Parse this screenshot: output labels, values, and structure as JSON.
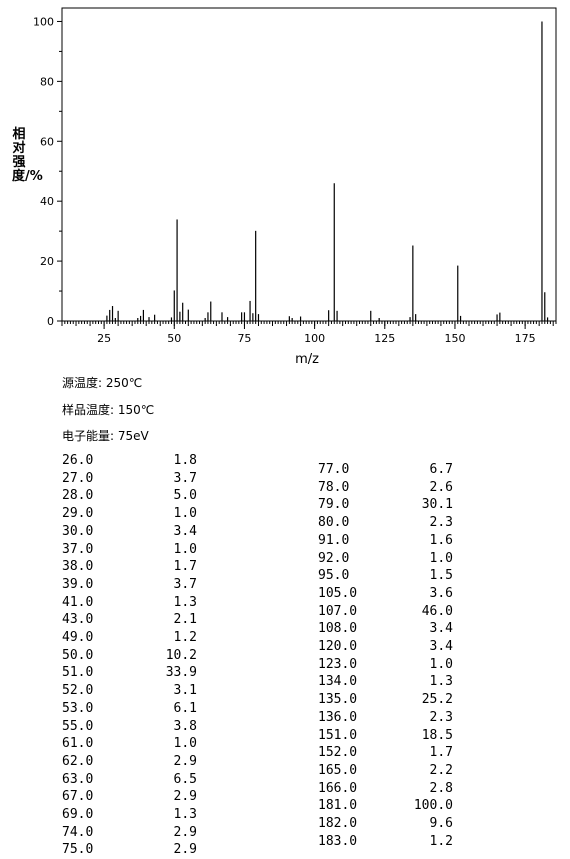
{
  "chart_data": {
    "type": "bar",
    "xlabel": "m/z",
    "ylabel": "相对强度/%",
    "xlim": [
      10,
      186
    ],
    "ylim": [
      0,
      100
    ],
    "x_ticks": [
      25,
      50,
      75,
      100,
      125,
      150,
      175
    ],
    "y_ticks": [
      0,
      20,
      40,
      60,
      80,
      100
    ],
    "grid": false,
    "peaks": [
      {
        "mz": 26.0,
        "intensity": 1.8
      },
      {
        "mz": 27.0,
        "intensity": 3.7
      },
      {
        "mz": 28.0,
        "intensity": 5.0
      },
      {
        "mz": 29.0,
        "intensity": 1.0
      },
      {
        "mz": 30.0,
        "intensity": 3.4
      },
      {
        "mz": 37.0,
        "intensity": 1.0
      },
      {
        "mz": 38.0,
        "intensity": 1.7
      },
      {
        "mz": 39.0,
        "intensity": 3.7
      },
      {
        "mz": 41.0,
        "intensity": 1.3
      },
      {
        "mz": 43.0,
        "intensity": 2.1
      },
      {
        "mz": 49.0,
        "intensity": 1.2
      },
      {
        "mz": 50.0,
        "intensity": 10.2
      },
      {
        "mz": 51.0,
        "intensity": 33.9
      },
      {
        "mz": 52.0,
        "intensity": 3.1
      },
      {
        "mz": 53.0,
        "intensity": 6.1
      },
      {
        "mz": 55.0,
        "intensity": 3.8
      },
      {
        "mz": 61.0,
        "intensity": 1.0
      },
      {
        "mz": 62.0,
        "intensity": 2.9
      },
      {
        "mz": 63.0,
        "intensity": 6.5
      },
      {
        "mz": 67.0,
        "intensity": 2.9
      },
      {
        "mz": 69.0,
        "intensity": 1.3
      },
      {
        "mz": 74.0,
        "intensity": 2.9
      },
      {
        "mz": 75.0,
        "intensity": 2.9
      },
      {
        "mz": 77.0,
        "intensity": 6.7
      },
      {
        "mz": 78.0,
        "intensity": 2.6
      },
      {
        "mz": 79.0,
        "intensity": 30.1
      },
      {
        "mz": 80.0,
        "intensity": 2.3
      },
      {
        "mz": 91.0,
        "intensity": 1.6
      },
      {
        "mz": 92.0,
        "intensity": 1.0
      },
      {
        "mz": 95.0,
        "intensity": 1.5
      },
      {
        "mz": 105.0,
        "intensity": 3.6
      },
      {
        "mz": 107.0,
        "intensity": 46.0
      },
      {
        "mz": 108.0,
        "intensity": 3.4
      },
      {
        "mz": 120.0,
        "intensity": 3.4
      },
      {
        "mz": 123.0,
        "intensity": 1.0
      },
      {
        "mz": 134.0,
        "intensity": 1.3
      },
      {
        "mz": 135.0,
        "intensity": 25.2
      },
      {
        "mz": 136.0,
        "intensity": 2.3
      },
      {
        "mz": 151.0,
        "intensity": 18.5
      },
      {
        "mz": 152.0,
        "intensity": 1.7
      },
      {
        "mz": 165.0,
        "intensity": 2.2
      },
      {
        "mz": 166.0,
        "intensity": 2.8
      },
      {
        "mz": 181.0,
        "intensity": 100.0
      },
      {
        "mz": 182.0,
        "intensity": 9.6
      },
      {
        "mz": 183.0,
        "intensity": 1.2
      }
    ]
  },
  "conditions": {
    "source_temp": "源温度: 250℃",
    "sample_temp": "样品温度: 150℃",
    "electron_energy": "电子能量: 75eV"
  },
  "table_left": [
    [
      "26.0",
      "1.8"
    ],
    [
      "27.0",
      "3.7"
    ],
    [
      "28.0",
      "5.0"
    ],
    [
      "29.0",
      "1.0"
    ],
    [
      "30.0",
      "3.4"
    ],
    [
      "37.0",
      "1.0"
    ],
    [
      "38.0",
      "1.7"
    ],
    [
      "39.0",
      "3.7"
    ],
    [
      "41.0",
      "1.3"
    ],
    [
      "43.0",
      "2.1"
    ],
    [
      "49.0",
      "1.2"
    ],
    [
      "50.0",
      "10.2"
    ],
    [
      "51.0",
      "33.9"
    ],
    [
      "52.0",
      "3.1"
    ],
    [
      "53.0",
      "6.1"
    ],
    [
      "55.0",
      "3.8"
    ],
    [
      "61.0",
      "1.0"
    ],
    [
      "62.0",
      "2.9"
    ],
    [
      "63.0",
      "6.5"
    ],
    [
      "67.0",
      "2.9"
    ],
    [
      "69.0",
      "1.3"
    ],
    [
      "74.0",
      "2.9"
    ],
    [
      "75.0",
      "2.9"
    ]
  ],
  "table_right": [
    [
      "77.0",
      "6.7"
    ],
    [
      "78.0",
      "2.6"
    ],
    [
      "79.0",
      "30.1"
    ],
    [
      "80.0",
      "2.3"
    ],
    [
      "91.0",
      "1.6"
    ],
    [
      "92.0",
      "1.0"
    ],
    [
      "95.0",
      "1.5"
    ],
    [
      "105.0",
      "3.6"
    ],
    [
      "107.0",
      "46.0"
    ],
    [
      "108.0",
      "3.4"
    ],
    [
      "120.0",
      "3.4"
    ],
    [
      "123.0",
      "1.0"
    ],
    [
      "134.0",
      "1.3"
    ],
    [
      "135.0",
      "25.2"
    ],
    [
      "136.0",
      "2.3"
    ],
    [
      "151.0",
      "18.5"
    ],
    [
      "152.0",
      "1.7"
    ],
    [
      "165.0",
      "2.2"
    ],
    [
      "166.0",
      "2.8"
    ],
    [
      "181.0",
      "100.0"
    ],
    [
      "182.0",
      "9.6"
    ],
    [
      "183.0",
      "1.2"
    ]
  ]
}
